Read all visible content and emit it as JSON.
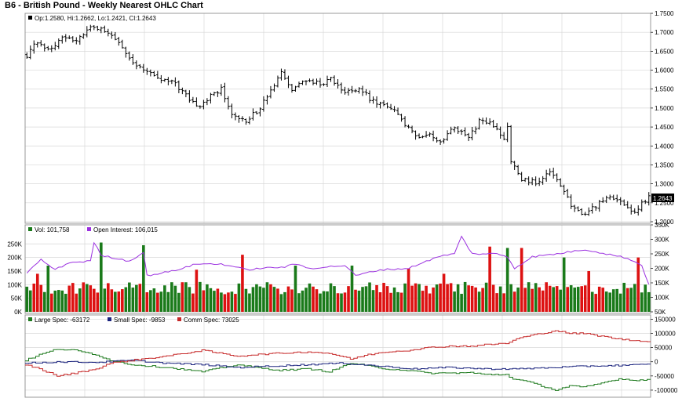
{
  "title": "B6 - British Pound - Weekly Nearest OHLC Chart",
  "colors": {
    "price": "#000000",
    "grid": "#d8d8d8",
    "vol_up": "#1a7a1a",
    "vol_down": "#dd1111",
    "open_interest": "#9b30e0",
    "large_spec": "#1e7a1e",
    "small_spec": "#1a237e",
    "comm_spec": "#c62828"
  },
  "chart_data": [
    {
      "type": "ohlc",
      "legend": "Op:1.2580, Hi:1.2662, Lo:1.2421, Cl:1.2643",
      "last_label": "1.2643",
      "ylim": [
        1.2,
        1.75
      ],
      "y_ticks": [
        "1.7500",
        "1.7000",
        "1.6500",
        "1.6000",
        "1.5500",
        "1.5000",
        "1.4500",
        "1.4000",
        "1.3500",
        "1.3000",
        "1.2500",
        "1.2000"
      ],
      "tick_values": [
        1.75,
        1.7,
        1.65,
        1.6,
        1.55,
        1.5,
        1.45,
        1.4,
        1.35,
        1.3,
        1.25,
        1.2
      ],
      "waypoints": [
        [
          0,
          1.64
        ],
        [
          3,
          1.675
        ],
        [
          6,
          1.655
        ],
        [
          10,
          1.685
        ],
        [
          14,
          1.68
        ],
        [
          18,
          1.71
        ],
        [
          21,
          1.715
        ],
        [
          24,
          1.69
        ],
        [
          27,
          1.66
        ],
        [
          30,
          1.62
        ],
        [
          34,
          1.6
        ],
        [
          37,
          1.575
        ],
        [
          41,
          1.57
        ],
        [
          45,
          1.535
        ],
        [
          48,
          1.5
        ],
        [
          51,
          1.525
        ],
        [
          55,
          1.55
        ],
        [
          58,
          1.485
        ],
        [
          62,
          1.465
        ],
        [
          66,
          1.5
        ],
        [
          69,
          1.545
        ],
        [
          72,
          1.59
        ],
        [
          75,
          1.545
        ],
        [
          79,
          1.575
        ],
        [
          83,
          1.565
        ],
        [
          86,
          1.575
        ],
        [
          90,
          1.54
        ],
        [
          94,
          1.555
        ],
        [
          97,
          1.525
        ],
        [
          100,
          1.51
        ],
        [
          104,
          1.49
        ],
        [
          107,
          1.455
        ],
        [
          110,
          1.425
        ],
        [
          114,
          1.435
        ],
        [
          117,
          1.405
        ],
        [
          121,
          1.45
        ],
        [
          125,
          1.42
        ],
        [
          128,
          1.465
        ],
        [
          132,
          1.455
        ],
        [
          135,
          1.42
        ],
        [
          136,
          1.45
        ],
        [
          137,
          1.36
        ],
        [
          140,
          1.31
        ],
        [
          144,
          1.305
        ],
        [
          148,
          1.33
        ],
        [
          151,
          1.295
        ],
        [
          154,
          1.245
        ],
        [
          157,
          1.215
        ],
        [
          160,
          1.235
        ],
        [
          163,
          1.255
        ],
        [
          166,
          1.265
        ],
        [
          169,
          1.24
        ],
        [
          172,
          1.225
        ],
        [
          174,
          1.25
        ],
        [
          176,
          1.2643
        ]
      ]
    },
    {
      "type": "bar+line",
      "legend_vol": "Vol: 101,758",
      "legend_oi": "Open Interest: 106,015",
      "left_ylim": [
        0,
        320000
      ],
      "left_ticks": [
        "250K",
        "200K",
        "150K",
        "100K",
        "50K",
        "0K"
      ],
      "left_tick_values": [
        250000,
        200000,
        150000,
        100000,
        50000,
        0
      ],
      "right_ylim": [
        50000,
        350000
      ],
      "right_ticks": [
        "350K",
        "300K",
        "250K",
        "200K",
        "150K",
        "100K",
        "50K"
      ],
      "right_tick_values": [
        350000,
        300000,
        250000,
        200000,
        150000,
        100000,
        50000
      ],
      "volume_spikes": [
        [
          3,
          140000
        ],
        [
          6,
          170000
        ],
        [
          21,
          255000
        ],
        [
          33,
          245000
        ],
        [
          48,
          155000
        ],
        [
          61,
          210000
        ],
        [
          76,
          170000
        ],
        [
          92,
          170000
        ],
        [
          108,
          160000
        ],
        [
          118,
          140000
        ],
        [
          131,
          240000
        ],
        [
          136,
          235000
        ],
        [
          140,
          235000
        ],
        [
          152,
          200000
        ],
        [
          159,
          150000
        ],
        [
          173,
          200000
        ],
        [
          175,
          100000
        ]
      ],
      "oi_waypoints": [
        [
          0,
          185000
        ],
        [
          4,
          230000
        ],
        [
          8,
          195000
        ],
        [
          12,
          220000
        ],
        [
          18,
          225000
        ],
        [
          19,
          290000
        ],
        [
          21,
          245000
        ],
        [
          25,
          235000
        ],
        [
          29,
          225000
        ],
        [
          33,
          255000
        ],
        [
          34,
          175000
        ],
        [
          41,
          190000
        ],
        [
          48,
          215000
        ],
        [
          55,
          215000
        ],
        [
          59,
          205000
        ],
        [
          62,
          195000
        ],
        [
          66,
          200000
        ],
        [
          73,
          205000
        ],
        [
          76,
          215000
        ],
        [
          80,
          200000
        ],
        [
          90,
          210000
        ],
        [
          93,
          175000
        ],
        [
          100,
          195000
        ],
        [
          108,
          200000
        ],
        [
          113,
          225000
        ],
        [
          118,
          245000
        ],
        [
          121,
          250000
        ],
        [
          123,
          310000
        ],
        [
          126,
          250000
        ],
        [
          133,
          250000
        ],
        [
          136,
          240000
        ],
        [
          138,
          200000
        ],
        [
          143,
          240000
        ],
        [
          150,
          250000
        ],
        [
          158,
          265000
        ],
        [
          162,
          255000
        ],
        [
          170,
          235000
        ],
        [
          174,
          210000
        ],
        [
          176,
          145000
        ]
      ]
    },
    {
      "type": "line",
      "legend": [
        "Large Spec: -63172",
        "Small Spec: -9853",
        "Comm Spec: 73025"
      ],
      "ylim": [
        -125000,
        165000
      ],
      "y_ticks": [
        "150000",
        "100000",
        "50000",
        "0",
        "-50000",
        "-100000"
      ],
      "tick_values": [
        150000,
        100000,
        50000,
        0,
        -50000,
        -100000
      ],
      "series": [
        {
          "name": "Large Spec",
          "waypoints": [
            [
              0,
              5000
            ],
            [
              4,
              25000
            ],
            [
              9,
              45000
            ],
            [
              14,
              40000
            ],
            [
              20,
              25000
            ],
            [
              24,
              5000
            ],
            [
              30,
              -10000
            ],
            [
              40,
              -20000
            ],
            [
              50,
              -35000
            ],
            [
              54,
              -25000
            ],
            [
              60,
              -10000
            ],
            [
              65,
              -20000
            ],
            [
              72,
              -30000
            ],
            [
              80,
              -25000
            ],
            [
              86,
              -35000
            ],
            [
              92,
              -5000
            ],
            [
              97,
              -15000
            ],
            [
              102,
              -25000
            ],
            [
              108,
              -30000
            ],
            [
              114,
              -40000
            ],
            [
              120,
              -40000
            ],
            [
              126,
              -38000
            ],
            [
              130,
              -45000
            ],
            [
              136,
              -45000
            ],
            [
              138,
              -60000
            ],
            [
              142,
              -70000
            ],
            [
              146,
              -85000
            ],
            [
              150,
              -100000
            ],
            [
              154,
              -85000
            ],
            [
              158,
              -90000
            ],
            [
              163,
              -75000
            ],
            [
              168,
              -60000
            ],
            [
              172,
              -65000
            ],
            [
              176,
              -63172
            ]
          ]
        },
        {
          "name": "Small Spec",
          "waypoints": [
            [
              0,
              -5000
            ],
            [
              10,
              0
            ],
            [
              20,
              -2000
            ],
            [
              30,
              5000
            ],
            [
              40,
              -5000
            ],
            [
              50,
              -10000
            ],
            [
              60,
              -20000
            ],
            [
              70,
              -15000
            ],
            [
              80,
              -10000
            ],
            [
              90,
              -5000
            ],
            [
              100,
              -15000
            ],
            [
              110,
              -25000
            ],
            [
              120,
              -20000
            ],
            [
              130,
              -25000
            ],
            [
              140,
              -25000
            ],
            [
              150,
              -20000
            ],
            [
              160,
              -15000
            ],
            [
              170,
              -12000
            ],
            [
              176,
              -9853
            ]
          ]
        },
        {
          "name": "Comm Spec",
          "waypoints": [
            [
              0,
              -10000
            ],
            [
              4,
              -25000
            ],
            [
              9,
              -50000
            ],
            [
              14,
              -40000
            ],
            [
              20,
              -25000
            ],
            [
              24,
              -5000
            ],
            [
              30,
              5000
            ],
            [
              40,
              20000
            ],
            [
              50,
              40000
            ],
            [
              55,
              30000
            ],
            [
              60,
              20000
            ],
            [
              65,
              25000
            ],
            [
              72,
              30000
            ],
            [
              80,
              35000
            ],
            [
              86,
              30000
            ],
            [
              92,
              10000
            ],
            [
              97,
              25000
            ],
            [
              102,
              35000
            ],
            [
              108,
              40000
            ],
            [
              114,
              50000
            ],
            [
              120,
              55000
            ],
            [
              126,
              55000
            ],
            [
              130,
              60000
            ],
            [
              136,
              65000
            ],
            [
              140,
              85000
            ],
            [
              146,
              100000
            ],
            [
              150,
              110000
            ],
            [
              154,
              100000
            ],
            [
              158,
              100000
            ],
            [
              163,
              90000
            ],
            [
              168,
              80000
            ],
            [
              172,
              75000
            ],
            [
              176,
              73025
            ]
          ]
        }
      ]
    }
  ]
}
